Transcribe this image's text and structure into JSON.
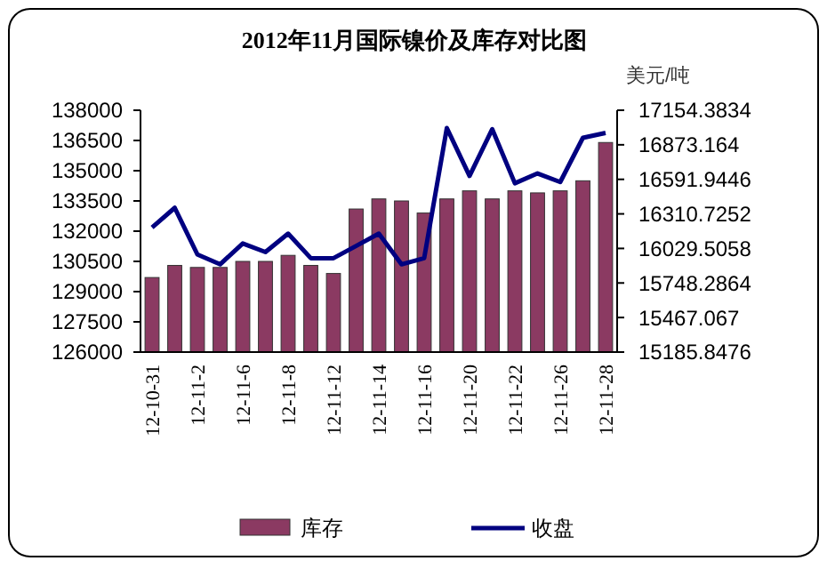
{
  "chart_data": {
    "type": "bar",
    "title": "2012年11月国际镍价及库存对比图",
    "y2label": "美元/吨",
    "categories": [
      "12-10-31",
      null,
      "12-11-2",
      null,
      "12-11-6",
      null,
      "12-11-8",
      null,
      "12-11-12",
      null,
      "12-11-14",
      null,
      "12-11-16",
      null,
      "12-11-20",
      null,
      "12-11-22",
      null,
      "12-11-26",
      null,
      "12-11-28"
    ],
    "series": [
      {
        "name": "库存",
        "color": "#8b3a62",
        "values": [
          129700,
          130300,
          130200,
          130200,
          130500,
          130500,
          130800,
          130300,
          129900,
          133100,
          133600,
          133500,
          132900,
          133600,
          134000,
          133600,
          134000,
          133900,
          134000,
          134500,
          136400
        ]
      },
      {
        "name": "收盘",
        "type": "line",
        "axis": "y2",
        "color": "#000080",
        "values": [
          16200,
          16360,
          15980,
          15900,
          16070,
          16000,
          16150,
          15950,
          15950,
          16050,
          16150,
          15900,
          15950,
          17010,
          16620,
          17000,
          16560,
          16640,
          16570,
          16930,
          16970
        ]
      }
    ],
    "ylim": [
      126000,
      138000
    ],
    "yticks": [
      126000,
      127500,
      129000,
      130500,
      132000,
      133500,
      135000,
      136500,
      138000
    ],
    "y2lim": [
      15185.8476,
      17154.3834
    ],
    "y2ticks": [
      15185.8476,
      15467.067,
      15748.2864,
      16029.5058,
      16310.7252,
      16591.9446,
      16873.164,
      17154.3834
    ],
    "grid": false,
    "legend": "bottom",
    "marker": "none",
    "line_style": "solid"
  }
}
